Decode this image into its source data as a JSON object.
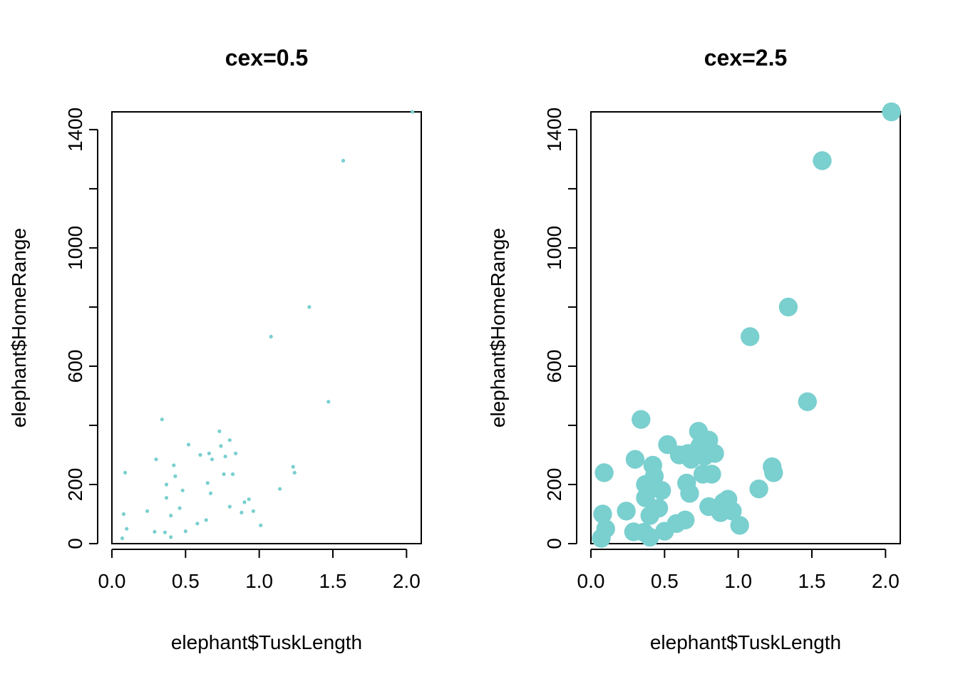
{
  "chart_data": [
    {
      "type": "scatter",
      "title": "cex=0.5",
      "xlabel": "elephant$TuskLength",
      "ylabel": "elephant$HomeRange",
      "xlim": [
        0,
        2.1
      ],
      "ylim": [
        0,
        1460
      ],
      "x_ticks": [
        0.0,
        0.5,
        1.0,
        1.5,
        2.0
      ],
      "x_tick_labels": [
        "0.0",
        "0.5",
        "1.0",
        "1.5",
        "2.0"
      ],
      "y_ticks": [
        0,
        200,
        400,
        600,
        800,
        1000,
        1200,
        1400
      ],
      "y_tick_labels": [
        "0",
        "200",
        "",
        "600",
        "",
        "1000",
        "",
        "1400"
      ],
      "point_size_cex": 0.5,
      "point_color": "#7ACFCF",
      "grid": false,
      "x": [
        0.07,
        0.08,
        0.09,
        0.1,
        0.24,
        0.29,
        0.3,
        0.34,
        0.36,
        0.37,
        0.37,
        0.4,
        0.4,
        0.42,
        0.43,
        0.46,
        0.48,
        0.5,
        0.52,
        0.58,
        0.6,
        0.64,
        0.65,
        0.66,
        0.67,
        0.68,
        0.73,
        0.74,
        0.76,
        0.77,
        0.8,
        0.8,
        0.82,
        0.84,
        0.88,
        0.9,
        0.93,
        0.96,
        1.01,
        1.08,
        1.14,
        1.23,
        1.24,
        1.34,
        1.47,
        1.57,
        2.04
      ],
      "y": [
        18,
        100,
        240,
        50,
        110,
        40,
        285,
        420,
        38,
        155,
        200,
        95,
        22,
        265,
        228,
        120,
        180,
        42,
        335,
        68,
        300,
        80,
        205,
        305,
        170,
        285,
        380,
        330,
        235,
        295,
        125,
        350,
        235,
        305,
        105,
        140,
        150,
        110,
        62,
        700,
        185,
        260,
        240,
        800,
        480,
        1295,
        1460
      ]
    },
    {
      "type": "scatter",
      "title": "cex=2.5",
      "xlabel": "elephant$TuskLength",
      "ylabel": "elephant$HomeRange",
      "xlim": [
        0,
        2.1
      ],
      "ylim": [
        0,
        1460
      ],
      "x_ticks": [
        0.0,
        0.5,
        1.0,
        1.5,
        2.0
      ],
      "x_tick_labels": [
        "0.0",
        "0.5",
        "1.0",
        "1.5",
        "2.0"
      ],
      "y_ticks": [
        0,
        200,
        400,
        600,
        800,
        1000,
        1200,
        1400
      ],
      "y_tick_labels": [
        "0",
        "200",
        "",
        "600",
        "",
        "1000",
        "",
        "1400"
      ],
      "point_size_cex": 2.5,
      "point_color": "#7ACFCF",
      "grid": false,
      "x": [
        0.07,
        0.08,
        0.09,
        0.1,
        0.24,
        0.29,
        0.3,
        0.34,
        0.36,
        0.37,
        0.37,
        0.4,
        0.4,
        0.42,
        0.43,
        0.46,
        0.48,
        0.5,
        0.52,
        0.58,
        0.6,
        0.64,
        0.65,
        0.66,
        0.67,
        0.68,
        0.73,
        0.74,
        0.76,
        0.77,
        0.8,
        0.8,
        0.82,
        0.84,
        0.88,
        0.9,
        0.93,
        0.96,
        1.01,
        1.08,
        1.14,
        1.23,
        1.24,
        1.34,
        1.47,
        1.57,
        2.04
      ],
      "y": [
        18,
        100,
        240,
        50,
        110,
        40,
        285,
        420,
        38,
        155,
        200,
        95,
        22,
        265,
        228,
        120,
        180,
        42,
        335,
        68,
        300,
        80,
        205,
        305,
        170,
        285,
        380,
        330,
        235,
        295,
        125,
        350,
        235,
        305,
        105,
        140,
        150,
        110,
        62,
        700,
        185,
        260,
        240,
        800,
        480,
        1295,
        1460
      ]
    }
  ]
}
